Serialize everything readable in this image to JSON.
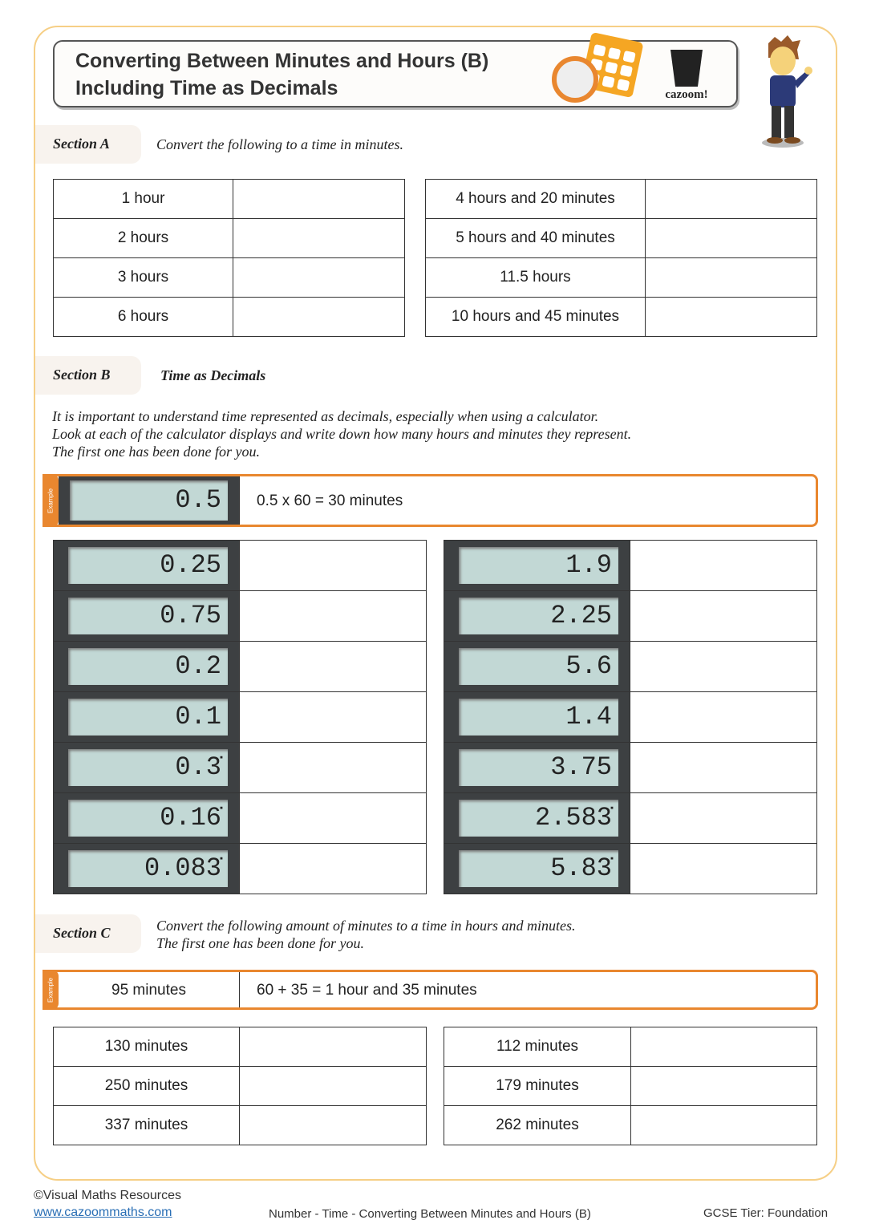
{
  "header": {
    "title_line1": "Converting Between Minutes and Hours (B)",
    "title_line2": "Including Time as Decimals",
    "logo_text": "cazoom!"
  },
  "section_a": {
    "label": "Section A",
    "instruction": "Convert the following to a time in minutes.",
    "left": [
      "1 hour",
      "2 hours",
      "3 hours",
      "6 hours"
    ],
    "right": [
      "4 hours and 20 minutes",
      "5 hours and 40 minutes",
      "11.5 hours",
      "10 hours and 45 minutes"
    ]
  },
  "section_b": {
    "label": "Section B",
    "heading": "Time as Decimals",
    "intro": [
      "It is important to understand time represented as decimals, especially when using a calculator.",
      "Look at each of the calculator displays and write down how many hours and minutes they represent.",
      "The first one has been done for you."
    ],
    "example_tag": "Example",
    "example_display": "0.5",
    "example_answer": "0.5 x 60 = 30 minutes",
    "left": [
      "0.25",
      "0.75",
      "0.2",
      "0.1",
      "0.3̇",
      "0.16̇",
      "0.083̇"
    ],
    "right": [
      "1.9",
      "2.25",
      "5.6",
      "1.4",
      "3.75",
      "2.583̇",
      "5.83̇"
    ]
  },
  "section_c": {
    "label": "Section C",
    "instruction": [
      "Convert the following amount of minutes to a time in hours and minutes.",
      "The first one has been done for you."
    ],
    "example_tag": "Example",
    "example_question": "95 minutes",
    "example_answer": "60 + 35 = 1 hour and 35 minutes",
    "left": [
      "130 minutes",
      "250 minutes",
      "337 minutes"
    ],
    "right": [
      "112 minutes",
      "179 minutes",
      "262 minutes"
    ]
  },
  "footer": {
    "copyright": "©Visual Maths Resources",
    "website": "www.cazoommaths.com",
    "topic": "Number - Time - Converting Between Minutes and Hours (B)",
    "tier": "GCSE Tier: Foundation"
  },
  "colors": {
    "accent": "#e9872f",
    "frame": "#f6cf86",
    "lcd": "#c2d8d5"
  }
}
